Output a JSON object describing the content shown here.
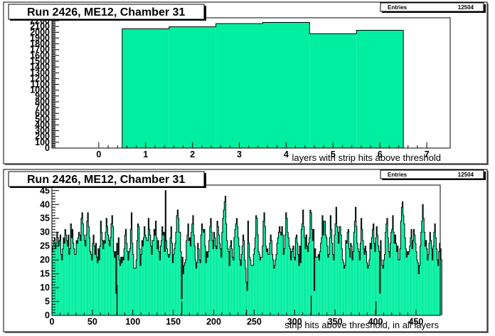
{
  "colors": {
    "fill": "#00ee9f",
    "frame": "#000000",
    "background": "#ffffff",
    "pad_shadow": "#7a7a7a"
  },
  "chart_data": [
    {
      "type": "bar",
      "title": "Run 2426, ME12, Chamber 31",
      "stats": {
        "label": "Entries",
        "value": "12504"
      },
      "xlabel": "layers with strip hits above threshold",
      "ylabel": "",
      "xlim": [
        -1,
        7.5
      ],
      "ylim": [
        0,
        2250
      ],
      "xticks": [
        0,
        1,
        2,
        3,
        4,
        5,
        6,
        7
      ],
      "yticks": [
        0,
        100,
        200,
        300,
        400,
        500,
        600,
        700,
        800,
        900,
        1000,
        1100,
        1200,
        1300,
        1400,
        1500,
        1600,
        1700,
        1800,
        1900,
        2000,
        2100,
        2200
      ],
      "bin_width": 1,
      "categories": [
        1,
        2,
        3,
        4,
        5,
        6
      ],
      "values": [
        2060,
        2095,
        2150,
        2170,
        1975,
        2035
      ],
      "grid": false,
      "legend": "top-right"
    },
    {
      "type": "bar",
      "title": "Run 2426, ME12, Chamber 31",
      "stats": {
        "label": "Entries",
        "value": "12504"
      },
      "xlabel": "strip hits above threshold, in all layers",
      "ylabel": "",
      "xlim": [
        0,
        480
      ],
      "ylim": [
        0,
        47
      ],
      "xticks": [
        0,
        50,
        100,
        150,
        200,
        250,
        300,
        350,
        400,
        450
      ],
      "yticks": [
        0,
        5,
        10,
        15,
        20,
        25,
        30,
        35,
        40,
        45
      ],
      "bin_width": 1,
      "x_start": 0,
      "values": [
        23,
        25,
        27,
        28,
        24,
        26,
        30,
        28,
        25,
        27,
        29,
        22,
        20,
        24,
        28,
        26,
        31,
        29,
        27,
        25,
        29,
        22,
        24,
        33,
        28,
        31,
        26,
        24,
        22,
        22,
        27,
        26,
        28,
        30,
        29,
        27,
        35,
        37,
        33,
        29,
        27,
        25,
        29,
        34,
        37,
        32,
        28,
        23,
        22,
        20,
        26,
        29,
        25,
        22,
        26,
        21,
        19,
        24,
        20,
        25,
        34,
        30,
        27,
        24,
        27,
        26,
        30,
        35,
        32,
        29,
        27,
        25,
        28,
        33,
        36,
        32,
        23,
        21,
        23,
        8,
        26,
        22,
        28,
        20,
        18,
        21,
        19,
        21,
        20,
        24,
        29,
        31,
        26,
        23,
        20,
        23,
        24,
        31,
        37,
        26,
        22,
        17,
        17,
        17,
        20,
        27,
        33,
        32,
        24,
        18,
        22,
        27,
        25,
        28,
        32,
        29,
        28,
        27,
        27,
        35,
        31,
        29,
        25,
        22,
        27,
        27,
        31,
        29,
        34,
        28,
        24,
        27,
        23,
        20,
        25,
        27,
        32,
        29,
        30,
        23,
        45,
        27,
        24,
        22,
        21,
        22,
        28,
        32,
        26,
        19,
        22,
        24,
        26,
        30,
        36,
        38,
        35,
        30,
        30,
        23,
        6,
        21,
        15,
        18,
        19,
        20,
        27,
        29,
        33,
        27,
        28,
        25,
        30,
        33,
        36,
        29,
        25,
        20,
        17,
        19,
        26,
        24,
        20,
        19,
        29,
        33,
        31,
        30,
        31,
        25,
        19,
        23,
        21,
        23,
        27,
        32,
        35,
        30,
        27,
        24,
        30,
        28,
        25,
        24,
        34,
        32,
        29,
        26,
        24,
        21,
        30,
        35,
        38,
        41,
        43,
        33,
        27,
        24,
        23,
        18,
        25,
        27,
        24,
        21,
        20,
        28,
        31,
        33,
        35,
        32,
        28,
        25,
        20,
        18,
        22,
        25,
        29,
        27,
        20,
        17,
        12,
        9,
        34,
        26,
        21,
        20,
        18,
        18,
        18,
        22,
        24,
        28,
        36,
        35,
        29,
        23,
        22,
        20,
        21,
        21,
        25,
        34,
        37,
        32,
        25,
        23,
        24,
        22,
        22,
        26,
        29,
        27,
        22,
        20,
        17,
        18,
        20,
        22,
        26,
        28,
        30,
        32,
        30,
        29,
        32,
        29,
        22,
        24,
        29,
        37,
        35,
        30,
        28,
        25,
        24,
        20,
        23,
        24,
        25,
        21,
        20,
        28,
        29,
        26,
        22,
        18,
        25,
        19,
        31,
        33,
        38,
        32,
        28,
        24,
        29,
        25,
        23,
        26,
        28,
        38,
        37,
        31,
        27,
        31,
        9,
        24,
        21,
        21,
        21,
        22,
        20,
        23,
        26,
        28,
        36,
        29,
        34,
        34,
        29,
        28,
        25,
        21,
        22,
        28,
        36,
        31,
        26,
        22,
        20,
        29,
        33,
        39,
        32,
        30,
        26,
        32,
        32,
        29,
        24,
        20,
        19,
        17,
        18,
        27,
        26,
        30,
        31,
        24,
        21,
        26,
        25,
        20,
        23,
        30,
        34,
        39,
        32,
        26,
        24,
        23,
        20,
        26,
        35,
        31,
        27,
        24,
        22,
        25,
        23,
        19,
        17,
        18,
        20,
        26,
        24,
        28,
        31,
        33,
        26,
        23,
        28,
        32,
        29,
        25,
        23,
        8,
        27,
        20,
        18,
        17,
        20,
        22,
        30,
        33,
        35,
        28,
        23,
        21,
        26,
        30,
        31,
        36,
        30,
        26,
        29,
        26,
        23,
        25,
        20,
        20,
        24,
        34,
        39,
        41,
        36,
        33,
        28,
        24,
        21,
        23,
        22,
        23,
        25,
        28,
        31,
        24,
        27,
        31,
        29,
        26,
        23,
        20,
        19,
        15,
        18,
        25,
        30,
        34,
        40,
        35,
        30,
        25,
        27,
        24,
        20,
        22,
        26,
        30,
        27,
        24,
        20,
        25,
        30,
        33,
        28,
        24,
        20,
        18,
        23,
        26,
        24,
        20
      ],
      "spikes": [
        [
          80,
          11
        ],
        [
          160,
          5
        ],
        [
          240,
          2
        ],
        [
          320,
          7
        ],
        [
          400,
          5
        ]
      ],
      "grid": false,
      "legend": "top-right"
    }
  ]
}
